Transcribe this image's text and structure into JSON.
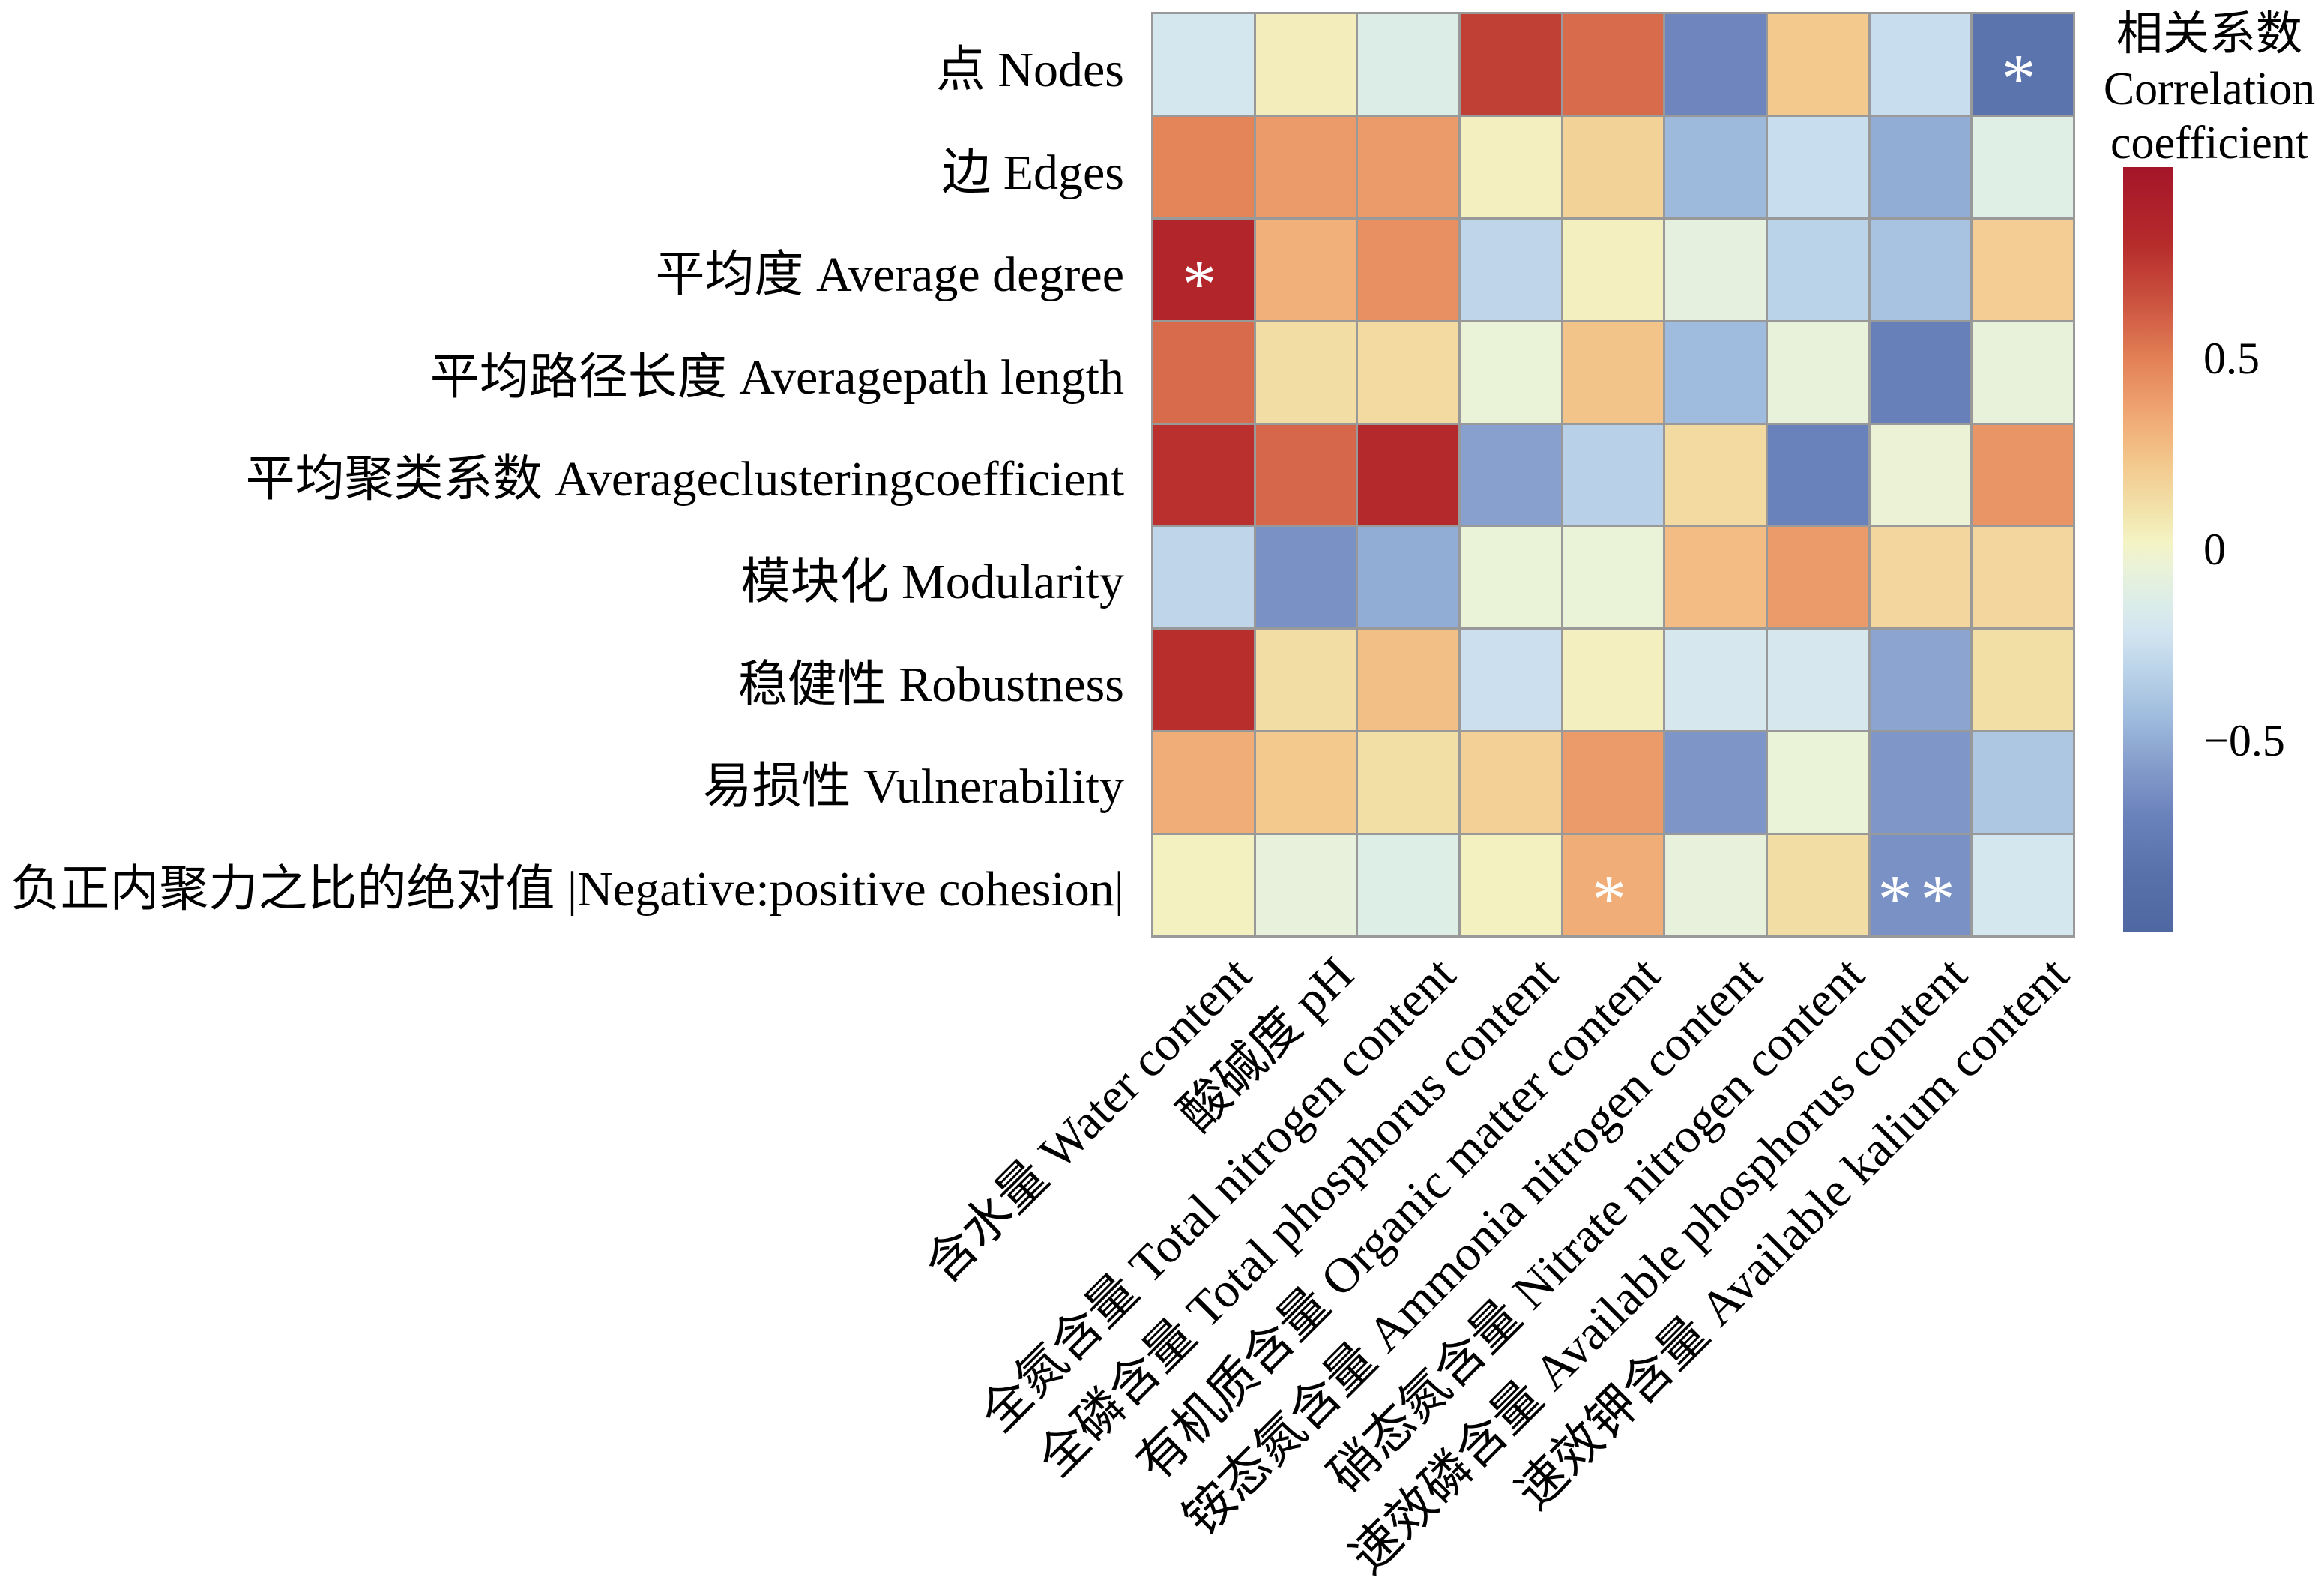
{
  "figure": {
    "colorbar_title_lines": [
      "相关系数",
      "Correlation",
      "coefficient"
    ],
    "colorbar": {
      "domain": [
        -1,
        1
      ],
      "ticks": [
        {
          "label": "0.5",
          "value": 0.5
        },
        {
          "label": "0",
          "value": 0
        },
        {
          "label": "−0.5",
          "value": -0.5
        }
      ]
    }
  },
  "chart_data": {
    "type": "heatmap",
    "rows": [
      "点 Nodes",
      "边 Edges",
      "平均度 Average degree",
      "平均路径长度 Averagepath length",
      "平均聚类系数 Averageclusteringcoefficient",
      "模块化 Modularity",
      "稳健性 Robustness",
      "易损性 Vulnerability",
      "负正内聚力之比的绝对值 |Negative:positive cohesion|"
    ],
    "columns": [
      "含水量 Water content",
      "酸碱度 pH",
      "全氮含量 Total nitrogen content",
      "全磷含量 Total phosphorus content",
      "有机质含量 Organic matter content",
      "铵态氮含量 Ammonia nitrogen content",
      "硝态氮含量 Nitrate nitrogen content",
      "速效磷含量 Available phosphorus content",
      "速效钾含量 Available kalium content"
    ],
    "values": [
      [
        -0.2,
        0.05,
        -0.14,
        0.72,
        0.57,
        -0.68,
        0.22,
        -0.26,
        -0.82
      ],
      [
        0.48,
        0.4,
        0.4,
        0.04,
        0.18,
        -0.45,
        -0.26,
        -0.5,
        -0.12
      ],
      [
        0.85,
        0.32,
        0.44,
        -0.3,
        0.04,
        -0.08,
        -0.32,
        -0.4,
        0.2
      ],
      [
        0.57,
        0.13,
        0.14,
        -0.05,
        0.24,
        -0.44,
        -0.06,
        -0.72,
        -0.06
      ],
      [
        0.78,
        0.58,
        0.82,
        -0.55,
        -0.33,
        0.14,
        -0.7,
        -0.04,
        0.42
      ],
      [
        -0.3,
        -0.62,
        -0.5,
        -0.05,
        -0.05,
        0.27,
        0.4,
        0.16,
        0.16
      ],
      [
        0.79,
        0.13,
        0.26,
        -0.25,
        0.04,
        -0.19,
        -0.19,
        -0.53,
        0.12
      ],
      [
        0.33,
        0.22,
        0.12,
        0.19,
        0.4,
        -0.6,
        -0.05,
        -0.59,
        -0.38
      ],
      [
        0.03,
        -0.07,
        -0.13,
        0.03,
        0.33,
        -0.07,
        0.13,
        -0.62,
        -0.2
      ]
    ],
    "significance": [
      [
        "",
        "",
        "",
        "",
        "",
        "",
        "",
        "",
        "*"
      ],
      [
        "",
        "",
        "",
        "",
        "",
        "",
        "",
        "",
        ""
      ],
      [
        "*",
        "",
        "",
        "",
        "",
        "",
        "",
        "",
        ""
      ],
      [
        "",
        "",
        "",
        "",
        "",
        "",
        "",
        "",
        ""
      ],
      [
        "",
        "",
        "",
        "",
        "",
        "",
        "",
        "",
        ""
      ],
      [
        "",
        "",
        "",
        "",
        "",
        "",
        "",
        "",
        ""
      ],
      [
        "",
        "",
        "",
        "",
        "",
        "",
        "",
        "",
        ""
      ],
      [
        "",
        "",
        "",
        "",
        "",
        "",
        "",
        "",
        ""
      ],
      [
        "",
        "",
        "",
        "",
        "*",
        "",
        "",
        "**",
        ""
      ]
    ],
    "significance_color": "#ffffff",
    "grid_line_color": "#999999",
    "value_domain": [
      -1,
      1
    ],
    "colormap": {
      "name": "red-yellow-blue (RdYlBu reversed)",
      "stops": [
        {
          "v": -1.0,
          "color": "#4f67a2"
        },
        {
          "v": -0.85,
          "color": "#5871ab"
        },
        {
          "v": -0.7,
          "color": "#6a82bb"
        },
        {
          "v": -0.58,
          "color": "#8199c9"
        },
        {
          "v": -0.45,
          "color": "#9db9dc"
        },
        {
          "v": -0.32,
          "color": "#bad3e9"
        },
        {
          "v": -0.22,
          "color": "#d2e4f0"
        },
        {
          "v": -0.13,
          "color": "#ddeee7"
        },
        {
          "v": -0.05,
          "color": "#eaf2d8"
        },
        {
          "v": 0.02,
          "color": "#f4f3c4"
        },
        {
          "v": 0.1,
          "color": "#f2e3ab"
        },
        {
          "v": 0.22,
          "color": "#f3c98e"
        },
        {
          "v": 0.35,
          "color": "#f0a873"
        },
        {
          "v": 0.5,
          "color": "#e28055"
        },
        {
          "v": 0.65,
          "color": "#cb5240"
        },
        {
          "v": 0.8,
          "color": "#b62b2b"
        },
        {
          "v": 1.0,
          "color": "#a5152a"
        }
      ]
    },
    "legend_position": "right",
    "x_tick_angle": 45
  }
}
